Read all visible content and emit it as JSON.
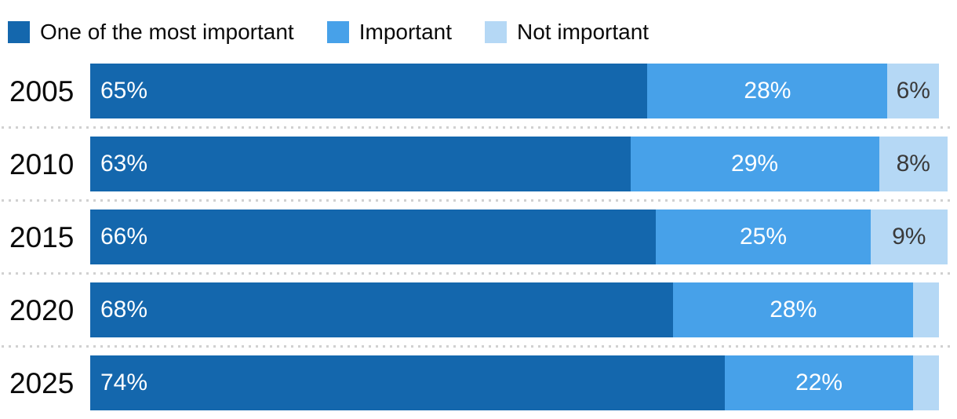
{
  "legend": {
    "items": [
      {
        "label": "One of the most important",
        "color": "#1467ad"
      },
      {
        "label": "Important",
        "color": "#47a1e9"
      },
      {
        "label": "Not important",
        "color": "#b5d8f5"
      }
    ]
  },
  "colors": {
    "background": "#ffffff",
    "text": "#0a0a0a",
    "label_on_dark": "#ffffff",
    "label_on_light": "#3a3a3a",
    "separator": "#d1d1d1",
    "series_dark_blue": "#1467ad",
    "series_medium_blue": "#47a1e9",
    "series_light_blue": "#b5d8f5"
  },
  "chart_data": {
    "type": "bar",
    "orientation": "horizontal",
    "stacked": true,
    "grid": "dotted row separators only",
    "legend_position": "top-left",
    "xlim": [
      0,
      100
    ],
    "unit": "%",
    "categories": [
      "2005",
      "2010",
      "2015",
      "2020",
      "2025"
    ],
    "series": [
      {
        "name": "One of the most important",
        "color": "#1467ad",
        "values": [
          65,
          63,
          66,
          68,
          74
        ]
      },
      {
        "name": "Important",
        "color": "#47a1e9",
        "values": [
          28,
          29,
          25,
          28,
          22
        ]
      },
      {
        "name": "Not important",
        "color": "#b5d8f5",
        "values": [
          6,
          8,
          9,
          3,
          3
        ]
      }
    ],
    "data_labels": [
      [
        "65%",
        "28%",
        "6%"
      ],
      [
        "63%",
        "29%",
        "8%"
      ],
      [
        "66%",
        "25%",
        "9%"
      ],
      [
        "68%",
        "28%",
        ""
      ],
      [
        "74%",
        "22%",
        ""
      ]
    ]
  }
}
